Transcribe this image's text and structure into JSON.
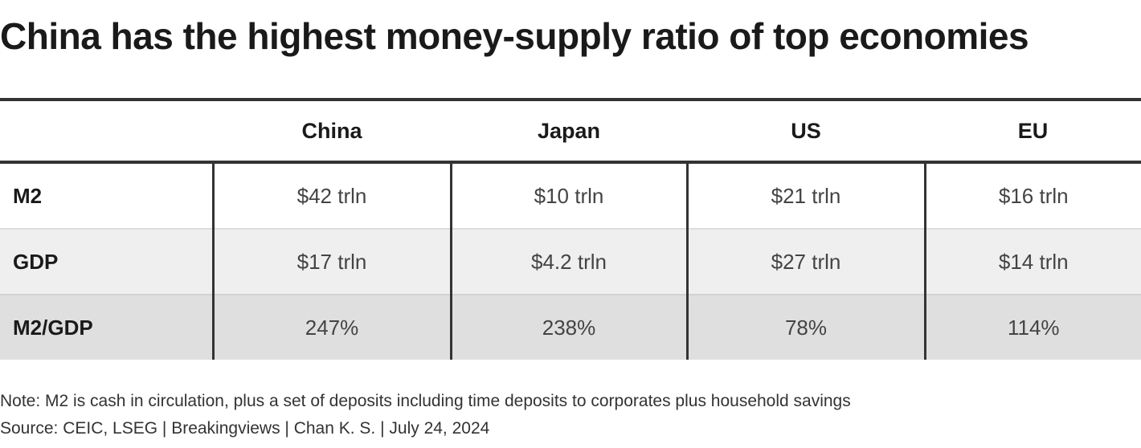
{
  "title": "China has the highest money-supply ratio of top economies",
  "note": "Note: M2 is cash in circulation, plus a set of deposits including time deposits to corporates plus household savings",
  "source": "Source: CEIC, LSEG | Breakingviews | Chan K. S. | July 24, 2024",
  "chart_data": {
    "type": "table",
    "title": "China has the highest money-supply ratio of top economies",
    "columns": [
      "",
      "China",
      "Japan",
      "US",
      "EU"
    ],
    "rows": [
      {
        "label": "M2",
        "cells": [
          "$42 trln",
          "$10 trln",
          "$21 trln",
          "$16 trln"
        ]
      },
      {
        "label": "GDP",
        "cells": [
          "$17 trln",
          "$4.2 trln",
          "$27 trln",
          "$14 trln"
        ]
      },
      {
        "label": "M2/GDP",
        "cells": [
          "247%",
          "238%",
          "78%",
          "114%"
        ]
      }
    ],
    "row_colors": [
      "#ffffff",
      "#efefef",
      "#dfdfdf"
    ]
  }
}
